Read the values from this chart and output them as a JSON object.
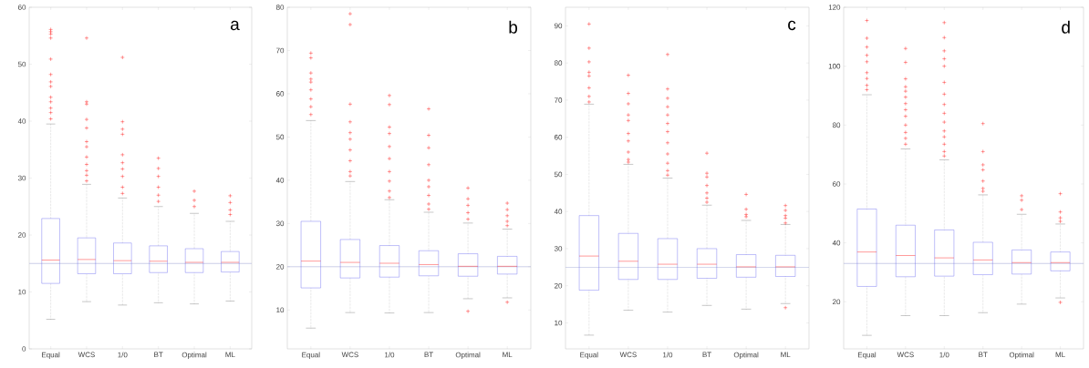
{
  "chart_data": [
    {
      "type": "box",
      "title": "a",
      "categories": [
        "Equal",
        "WCS",
        "1/0",
        "BT",
        "Optimal",
        "ML"
      ],
      "color": "#6060f0",
      "marker": "cross",
      "ylim": [
        0,
        60
      ],
      "yticks": [
        0,
        10,
        20,
        30,
        40,
        50,
        60
      ],
      "boxes": [
        {
          "low": 5.2,
          "q1": 11.5,
          "median": 15.6,
          "q3": 22.9,
          "high": 39.5,
          "outliers": [
            56.1,
            55.7,
            55.3,
            54.6,
            50.9,
            48.2,
            46.9,
            46.1,
            44.2,
            43.4,
            42.3,
            41.5,
            40.4
          ]
        },
        {
          "low": 8.3,
          "q1": 13.2,
          "median": 15.7,
          "q3": 19.5,
          "high": 28.9,
          "outliers": [
            54.6,
            43.4,
            43.0,
            40.3,
            38.8,
            36.4,
            35.5,
            33.7,
            32.4,
            31.3,
            30.5,
            29.5
          ]
        },
        {
          "low": 7.7,
          "q1": 13.2,
          "median": 15.5,
          "q3": 18.6,
          "high": 26.5,
          "outliers": [
            51.2,
            39.9,
            38.6,
            37.7,
            34.1,
            32.7,
            31.6,
            30.3,
            28.4,
            27.3
          ]
        },
        {
          "low": 8.1,
          "q1": 13.4,
          "median": 15.4,
          "q3": 18.1,
          "high": 25.0,
          "outliers": [
            33.5,
            31.7,
            30.3,
            28.4,
            27.0,
            25.9
          ]
        },
        {
          "low": 7.9,
          "q1": 13.4,
          "median": 15.2,
          "q3": 17.6,
          "high": 23.8,
          "outliers": [
            27.7,
            26.1,
            25.0
          ]
        },
        {
          "low": 8.4,
          "q1": 13.5,
          "median": 15.2,
          "q3": 17.1,
          "high": 22.4,
          "outliers": [
            26.9,
            25.7,
            24.4,
            23.6
          ]
        }
      ],
      "ref_lines": [
        {
          "axis": "y",
          "value": 15,
          "color": "#a8acd8"
        }
      ]
    },
    {
      "type": "box",
      "title": "b",
      "categories": [
        "Equal",
        "WCS",
        "1/0",
        "BT",
        "Optimal",
        "ML"
      ],
      "color": "#6060f0",
      "marker": "cross",
      "ylim": [
        1,
        80
      ],
      "yticks": [
        10,
        20,
        30,
        40,
        50,
        60,
        70,
        80
      ],
      "boxes": [
        {
          "low": 5.8,
          "q1": 15.1,
          "median": 21.3,
          "q3": 30.5,
          "high": 53.8,
          "outliers": [
            69.4,
            68.3,
            64.8,
            63.4,
            62.7,
            60.9,
            58.8,
            57.0,
            55.2
          ]
        },
        {
          "low": 9.4,
          "q1": 17.4,
          "median": 21.0,
          "q3": 26.3,
          "high": 39.7,
          "outliers": [
            78.5,
            76.0,
            57.6,
            53.5,
            51.0,
            49.5,
            47.0,
            44.5,
            42.0,
            41.0
          ]
        },
        {
          "low": 9.3,
          "q1": 17.6,
          "median": 20.8,
          "q3": 24.9,
          "high": 35.5,
          "outliers": [
            59.6,
            57.5,
            52.3,
            50.8,
            47.8,
            45.0,
            42.0,
            39.8,
            37.5,
            36.0
          ]
        },
        {
          "low": 9.4,
          "q1": 17.9,
          "median": 20.5,
          "q3": 23.7,
          "high": 32.6,
          "outliers": [
            56.5,
            50.4,
            47.5,
            43.6,
            40.0,
            38.5,
            36.5,
            34.5,
            33.3
          ]
        },
        {
          "low": 12.6,
          "q1": 17.8,
          "median": 20.1,
          "q3": 23.0,
          "high": 30.1,
          "outliers": [
            38.2,
            35.7,
            34.2,
            32.5,
            31.0,
            9.7
          ]
        },
        {
          "low": 12.8,
          "q1": 18.3,
          "median": 20.1,
          "q3": 22.4,
          "high": 28.7,
          "outliers": [
            34.7,
            33.2,
            31.8,
            30.5,
            29.5,
            11.8
          ]
        }
      ],
      "ref_lines": [
        {
          "axis": "y",
          "value": 20,
          "color": "#a8acd8"
        }
      ]
    },
    {
      "type": "box",
      "title": "c",
      "categories": [
        "Equal",
        "WCS",
        "1/0",
        "BT",
        "Optimal",
        "ML"
      ],
      "color": "#6060f0",
      "marker": "cross",
      "ylim": [
        3,
        95
      ],
      "yticks": [
        10,
        20,
        30,
        40,
        50,
        60,
        70,
        80,
        90
      ],
      "boxes": [
        {
          "low": 6.7,
          "q1": 18.8,
          "median": 28.0,
          "q3": 38.9,
          "high": 68.9,
          "outliers": [
            90.5,
            84.0,
            80.3,
            77.5,
            76.5,
            73.3,
            71.0,
            69.5
          ]
        },
        {
          "low": 13.4,
          "q1": 21.7,
          "median": 26.6,
          "q3": 34.1,
          "high": 52.7,
          "outliers": [
            76.7,
            71.8,
            69.0,
            66.0,
            64.5,
            61.0,
            59.0,
            56.0,
            54.0,
            53.3
          ]
        },
        {
          "low": 12.9,
          "q1": 21.7,
          "median": 25.8,
          "q3": 32.7,
          "high": 49.0,
          "outliers": [
            82.3,
            73.0,
            70.5,
            68.2,
            66.0,
            63.7,
            61.5,
            58.5,
            55.5,
            53.0,
            51.0,
            49.8
          ]
        },
        {
          "low": 14.7,
          "q1": 22.0,
          "median": 25.8,
          "q3": 30.0,
          "high": 41.7,
          "outliers": [
            55.7,
            50.3,
            49.3,
            47.0,
            45.0,
            43.6,
            42.5
          ]
        },
        {
          "low": 13.7,
          "q1": 22.3,
          "median": 25.1,
          "q3": 28.4,
          "high": 37.6,
          "outliers": [
            44.6,
            40.6,
            39.2,
            38.6
          ]
        },
        {
          "low": 15.2,
          "q1": 22.5,
          "median": 25.1,
          "q3": 28.2,
          "high": 36.5,
          "outliers": [
            41.6,
            40.3,
            38.9,
            38.2,
            36.9,
            14.1
          ]
        }
      ],
      "ref_lines": [
        {
          "axis": "y",
          "value": 25,
          "color": "#a8acd8"
        }
      ]
    },
    {
      "type": "box",
      "title": "d",
      "categories": [
        "Equal",
        "WCS",
        "1/0",
        "BT",
        "Optimal",
        "ML"
      ],
      "color": "#6060f0",
      "marker": "cross",
      "ylim": [
        4,
        120
      ],
      "yticks": [
        20,
        40,
        60,
        80,
        100,
        120
      ],
      "boxes": [
        {
          "low": 8.6,
          "q1": 25.2,
          "median": 36.9,
          "q3": 51.5,
          "high": 90.3,
          "outliers": [
            115.5,
            109.5,
            106.5,
            103.7,
            101.5,
            97.8,
            95.8,
            93.5,
            92.0
          ]
        },
        {
          "low": 15.3,
          "q1": 28.5,
          "median": 35.7,
          "q3": 46.0,
          "high": 71.9,
          "outliers": [
            106.0,
            101.3,
            95.7,
            93.0,
            91.5,
            89.5,
            87.3,
            85.2,
            83.0,
            80.0,
            77.5,
            75.5,
            73.5
          ]
        },
        {
          "low": 15.3,
          "q1": 28.7,
          "median": 34.9,
          "q3": 44.4,
          "high": 68.2,
          "outliers": [
            114.8,
            109.7,
            105.2,
            102.5,
            100.0,
            94.5,
            90.5,
            87.0,
            84.0,
            81.0,
            78.0,
            76.0,
            73.5,
            71.0,
            69.5
          ]
        },
        {
          "low": 16.3,
          "q1": 29.2,
          "median": 34.2,
          "q3": 40.2,
          "high": 56.3,
          "outliers": [
            80.5,
            71.0,
            66.5,
            64.8,
            61.0,
            58.5,
            57.5
          ]
        },
        {
          "low": 19.2,
          "q1": 29.4,
          "median": 33.3,
          "q3": 37.6,
          "high": 49.7,
          "outliers": [
            56.0,
            54.5,
            51.3
          ]
        },
        {
          "low": 21.3,
          "q1": 30.5,
          "median": 33.3,
          "q3": 36.9,
          "high": 46.4,
          "outliers": [
            56.7,
            50.5,
            48.5,
            47.3,
            19.8
          ]
        }
      ],
      "ref_lines": [
        {
          "axis": "y",
          "value": 33,
          "color": "#a8acd8"
        }
      ]
    }
  ]
}
